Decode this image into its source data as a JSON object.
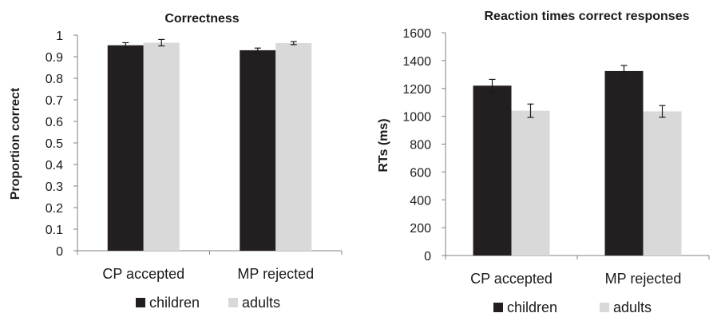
{
  "chart_data": [
    {
      "type": "bar",
      "title": "Correctness",
      "xlabel": "",
      "ylabel": "Proportion correct",
      "ylim": [
        0,
        1
      ],
      "yticks": [
        "0",
        "0.1",
        "0.2",
        "0.3",
        "0.4",
        "0.5",
        "0.6",
        "0.7",
        "0.8",
        "0.9",
        "1"
      ],
      "categories": [
        "CP accepted",
        "MP rejected"
      ],
      "series": [
        {
          "name": "children",
          "values": [
            0.953,
            0.93
          ],
          "errors": [
            0.012,
            0.01
          ],
          "color": "#231f20"
        },
        {
          "name": "adults",
          "values": [
            0.965,
            0.963
          ],
          "errors": [
            0.015,
            0.007
          ],
          "color": "#d9d9d9"
        }
      ],
      "legend": "bottom",
      "grid": false
    },
    {
      "type": "bar",
      "title": "Reaction times correct responses",
      "xlabel": "",
      "ylabel": "RTs (ms)",
      "ylim": [
        0,
        1600
      ],
      "yticks": [
        "0",
        "200",
        "400",
        "600",
        "800",
        "1000",
        "1200",
        "1400",
        "1600"
      ],
      "categories": [
        "CP accepted",
        "MP rejected"
      ],
      "series": [
        {
          "name": "children",
          "values": [
            1220,
            1325
          ],
          "errors": [
            45,
            40
          ],
          "color": "#231f20"
        },
        {
          "name": "adults",
          "values": [
            1040,
            1035
          ],
          "errors": [
            48,
            42
          ],
          "color": "#d9d9d9"
        }
      ],
      "legend": "bottom",
      "grid": false
    }
  ]
}
